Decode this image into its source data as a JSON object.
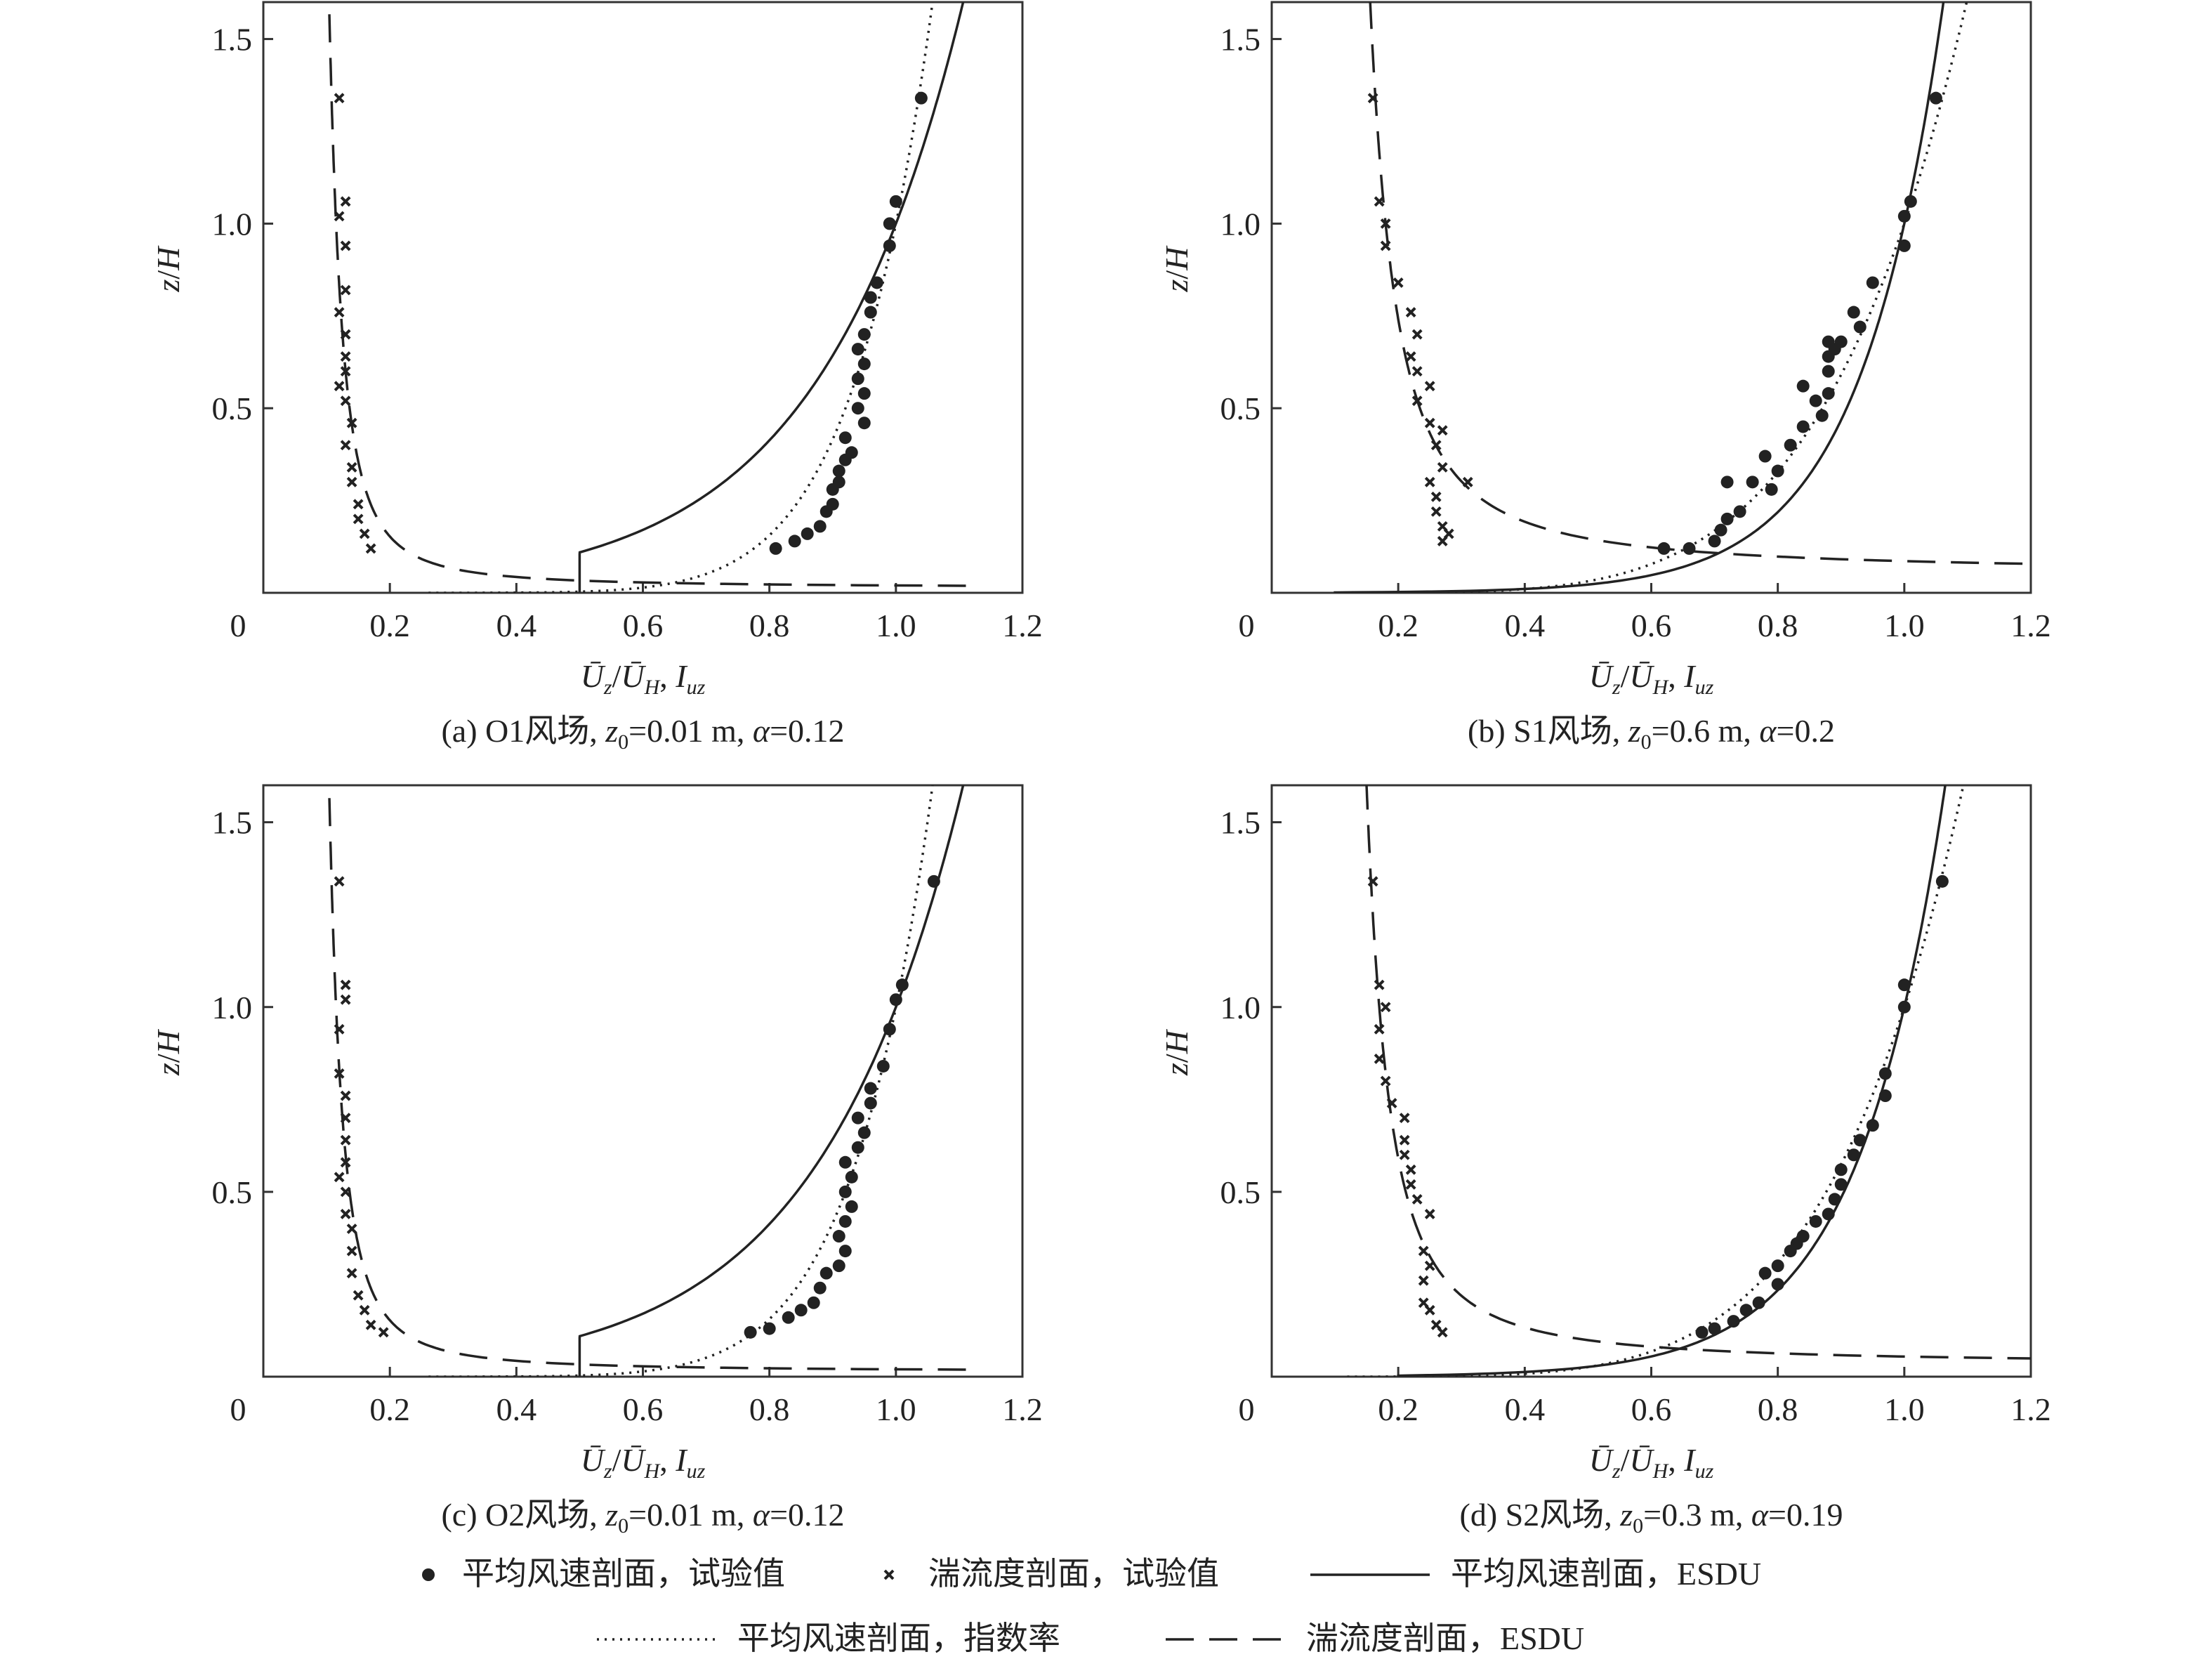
{
  "figure": {
    "legend": [
      {
        "symbol": "dot",
        "label": "平均风速剖面，试验值"
      },
      {
        "symbol": "cross",
        "label": "湍流度剖面，试验值"
      },
      {
        "symbol": "solid",
        "label": "平均风速剖面，ESDU"
      },
      {
        "symbol": "dotted",
        "label": "平均风速剖面，指数率"
      },
      {
        "symbol": "dashed",
        "label": "湍流度剖面，ESDU"
      }
    ],
    "colors": {
      "ink": "#222222",
      "frame": "#333333"
    }
  },
  "chart_data": [
    {
      "type": "scatter",
      "id": "a",
      "caption": {
        "prefix": "(a) O1风场, ",
        "z0_sym": "z",
        "z0_sub": "0",
        "z0_val": "=0.01 m, ",
        "alpha_sym": "α",
        "alpha_val": "=0.12"
      },
      "xlabel": "Ū_z/Ū_H, I_uz",
      "ylabel": "z/H",
      "xlim": [
        0,
        1.2
      ],
      "ylim": [
        0,
        1.6
      ],
      "xticks": [
        "0",
        "0.2",
        "0.4",
        "0.6",
        "0.8",
        "1.0",
        "1.2"
      ],
      "yticks": [
        "0.5",
        "1.0",
        "1.5"
      ],
      "series": [
        {
          "name": "平均风速剖面，试验值",
          "kind": "dot",
          "points": [
            [
              0.81,
              0.12
            ],
            [
              0.84,
              0.14
            ],
            [
              0.86,
              0.16
            ],
            [
              0.88,
              0.18
            ],
            [
              0.89,
              0.22
            ],
            [
              0.9,
              0.24
            ],
            [
              0.9,
              0.28
            ],
            [
              0.91,
              0.3
            ],
            [
              0.91,
              0.33
            ],
            [
              0.92,
              0.36
            ],
            [
              0.93,
              0.38
            ],
            [
              0.92,
              0.42
            ],
            [
              0.95,
              0.46
            ],
            [
              0.94,
              0.5
            ],
            [
              0.95,
              0.54
            ],
            [
              0.94,
              0.58
            ],
            [
              0.95,
              0.62
            ],
            [
              0.94,
              0.66
            ],
            [
              0.95,
              0.7
            ],
            [
              0.96,
              0.76
            ],
            [
              0.96,
              0.8
            ],
            [
              0.97,
              0.84
            ],
            [
              0.99,
              0.94
            ],
            [
              0.99,
              1.0
            ],
            [
              1.0,
              1.06
            ],
            [
              1.04,
              1.34
            ]
          ]
        },
        {
          "name": "湍流度剖面，试验值",
          "kind": "cross",
          "points": [
            [
              0.17,
              0.12
            ],
            [
              0.16,
              0.16
            ],
            [
              0.15,
              0.2
            ],
            [
              0.15,
              0.24
            ],
            [
              0.14,
              0.3
            ],
            [
              0.14,
              0.34
            ],
            [
              0.13,
              0.4
            ],
            [
              0.14,
              0.46
            ],
            [
              0.13,
              0.52
            ],
            [
              0.12,
              0.56
            ],
            [
              0.13,
              0.6
            ],
            [
              0.13,
              0.64
            ],
            [
              0.13,
              0.7
            ],
            [
              0.12,
              0.76
            ],
            [
              0.13,
              0.82
            ],
            [
              0.13,
              0.94
            ],
            [
              0.12,
              1.02
            ],
            [
              0.13,
              1.06
            ],
            [
              0.12,
              1.34
            ]
          ]
        },
        {
          "name": "平均风速剖面，ESDU",
          "kind": "solid",
          "fn": "log",
          "z0": 0.012,
          "xmin": 0.5
        },
        {
          "name": "平均风速剖面，指数率",
          "kind": "dotted",
          "fn": "pow",
          "alpha": 0.12
        },
        {
          "name": "湍流度剖面，ESDU",
          "kind": "dashed",
          "fn": "turb",
          "c": 0.115,
          "z0": 0.012
        }
      ]
    },
    {
      "type": "scatter",
      "id": "b",
      "caption": {
        "prefix": "(b) S1风场, ",
        "z0_sym": "z",
        "z0_sub": "0",
        "z0_val": "=0.6 m, ",
        "alpha_sym": "α",
        "alpha_val": "=0.2"
      },
      "xlabel": "Ū_z/Ū_H, I_uz",
      "ylabel": "z/H",
      "xlim": [
        0,
        1.2
      ],
      "ylim": [
        0,
        1.6
      ],
      "xticks": [
        "0",
        "0.2",
        "0.4",
        "0.6",
        "0.8",
        "1.0",
        "1.2"
      ],
      "yticks": [
        "0.5",
        "1.0",
        "1.5"
      ],
      "series": [
        {
          "name": "平均风速剖面，试验值",
          "kind": "dot",
          "points": [
            [
              0.62,
              0.12
            ],
            [
              0.66,
              0.12
            ],
            [
              0.7,
              0.14
            ],
            [
              0.71,
              0.17
            ],
            [
              0.72,
              0.2
            ],
            [
              0.74,
              0.22
            ],
            [
              0.72,
              0.3
            ],
            [
              0.76,
              0.3
            ],
            [
              0.79,
              0.28
            ],
            [
              0.8,
              0.33
            ],
            [
              0.78,
              0.37
            ],
            [
              0.82,
              0.4
            ],
            [
              0.84,
              0.45
            ],
            [
              0.87,
              0.48
            ],
            [
              0.86,
              0.52
            ],
            [
              0.88,
              0.54
            ],
            [
              0.84,
              0.56
            ],
            [
              0.88,
              0.6
            ],
            [
              0.88,
              0.64
            ],
            [
              0.89,
              0.66
            ],
            [
              0.88,
              0.68
            ],
            [
              0.9,
              0.68
            ],
            [
              0.93,
              0.72
            ],
            [
              0.92,
              0.76
            ],
            [
              0.95,
              0.84
            ],
            [
              1.0,
              0.94
            ],
            [
              1.0,
              1.02
            ],
            [
              1.01,
              1.06
            ],
            [
              1.05,
              1.34
            ]
          ]
        },
        {
          "name": "湍流度剖面，试验值",
          "kind": "cross",
          "points": [
            [
              0.27,
              0.14
            ],
            [
              0.28,
              0.16
            ],
            [
              0.27,
              0.18
            ],
            [
              0.26,
              0.22
            ],
            [
              0.26,
              0.26
            ],
            [
              0.25,
              0.3
            ],
            [
              0.31,
              0.3
            ],
            [
              0.27,
              0.34
            ],
            [
              0.26,
              0.4
            ],
            [
              0.27,
              0.44
            ],
            [
              0.25,
              0.46
            ],
            [
              0.23,
              0.52
            ],
            [
              0.25,
              0.56
            ],
            [
              0.23,
              0.6
            ],
            [
              0.22,
              0.64
            ],
            [
              0.23,
              0.7
            ],
            [
              0.22,
              0.76
            ],
            [
              0.2,
              0.84
            ],
            [
              0.18,
              0.94
            ],
            [
              0.18,
              1.0
            ],
            [
              0.17,
              1.06
            ],
            [
              0.16,
              1.34
            ]
          ]
        },
        {
          "name": "平均风速剖面，ESDU",
          "kind": "solid",
          "fn": "log",
          "z0": 0.0005,
          "xmin": 0.1
        },
        {
          "name": "平均风速剖面，指数率",
          "kind": "dotted",
          "fn": "pow",
          "alpha": 0.2
        },
        {
          "name": "湍流度剖面，ESDU",
          "kind": "dashed",
          "fn": "turb",
          "c": 0.18,
          "z0": 0.05
        }
      ]
    },
    {
      "type": "scatter",
      "id": "c",
      "caption": {
        "prefix": "(c) O2风场, ",
        "z0_sym": "z",
        "z0_sub": "0",
        "z0_val": "=0.01 m, ",
        "alpha_sym": "α",
        "alpha_val": "=0.12"
      },
      "xlabel": "Ū_z/Ū_H, I_uz",
      "ylabel": "z/H",
      "xlim": [
        0,
        1.2
      ],
      "ylim": [
        0,
        1.6
      ],
      "xticks": [
        "0",
        "0.2",
        "0.4",
        "0.6",
        "0.8",
        "1.0",
        "1.2"
      ],
      "yticks": [
        "0.5",
        "1.0",
        "1.5"
      ],
      "series": [
        {
          "name": "平均风速剖面，试验值",
          "kind": "dot",
          "points": [
            [
              0.77,
              0.12
            ],
            [
              0.8,
              0.13
            ],
            [
              0.83,
              0.16
            ],
            [
              0.85,
              0.18
            ],
            [
              0.87,
              0.2
            ],
            [
              0.88,
              0.24
            ],
            [
              0.89,
              0.28
            ],
            [
              0.91,
              0.3
            ],
            [
              0.92,
              0.34
            ],
            [
              0.91,
              0.38
            ],
            [
              0.92,
              0.42
            ],
            [
              0.93,
              0.46
            ],
            [
              0.92,
              0.5
            ],
            [
              0.93,
              0.54
            ],
            [
              0.92,
              0.58
            ],
            [
              0.94,
              0.62
            ],
            [
              0.95,
              0.66
            ],
            [
              0.94,
              0.7
            ],
            [
              0.96,
              0.74
            ],
            [
              0.96,
              0.78
            ],
            [
              0.98,
              0.84
            ],
            [
              0.99,
              0.94
            ],
            [
              1.0,
              1.02
            ],
            [
              1.01,
              1.06
            ],
            [
              1.06,
              1.34
            ]
          ]
        },
        {
          "name": "湍流度剖面，试验值",
          "kind": "cross",
          "points": [
            [
              0.19,
              0.12
            ],
            [
              0.17,
              0.14
            ],
            [
              0.16,
              0.18
            ],
            [
              0.15,
              0.22
            ],
            [
              0.14,
              0.28
            ],
            [
              0.14,
              0.34
            ],
            [
              0.14,
              0.4
            ],
            [
              0.13,
              0.44
            ],
            [
              0.13,
              0.5
            ],
            [
              0.12,
              0.54
            ],
            [
              0.13,
              0.58
            ],
            [
              0.13,
              0.64
            ],
            [
              0.13,
              0.7
            ],
            [
              0.13,
              0.76
            ],
            [
              0.12,
              0.82
            ],
            [
              0.12,
              0.94
            ],
            [
              0.13,
              1.02
            ],
            [
              0.13,
              1.06
            ],
            [
              0.12,
              1.34
            ]
          ]
        },
        {
          "name": "平均风速剖面，ESDU",
          "kind": "solid",
          "fn": "log",
          "z0": 0.012,
          "xmin": 0.5
        },
        {
          "name": "平均风速剖面，指数率",
          "kind": "dotted",
          "fn": "pow",
          "alpha": 0.12
        },
        {
          "name": "湍流度剖面，ESDU",
          "kind": "dashed",
          "fn": "turb",
          "c": 0.115,
          "z0": 0.012
        }
      ]
    },
    {
      "type": "scatter",
      "id": "d",
      "caption": {
        "prefix": "(d) S2风场, ",
        "z0_sym": "z",
        "z0_sub": "0",
        "z0_val": "=0.3 m, ",
        "alpha_sym": "α",
        "alpha_val": "=0.19"
      },
      "xlabel": "Ū_z/Ū_H, I_uz",
      "ylabel": "z/H",
      "xlim": [
        0,
        1.2
      ],
      "ylim": [
        0,
        1.6
      ],
      "xticks": [
        "0",
        "0.2",
        "0.4",
        "0.6",
        "0.8",
        "1.0",
        "1.2"
      ],
      "yticks": [
        "0.5",
        "1.0",
        "1.5"
      ],
      "series": [
        {
          "name": "平均风速剖面，试验值",
          "kind": "dot",
          "points": [
            [
              0.68,
              0.12
            ],
            [
              0.7,
              0.13
            ],
            [
              0.73,
              0.15
            ],
            [
              0.75,
              0.18
            ],
            [
              0.77,
              0.2
            ],
            [
              0.8,
              0.25
            ],
            [
              0.78,
              0.28
            ],
            [
              0.8,
              0.3
            ],
            [
              0.82,
              0.34
            ],
            [
              0.83,
              0.36
            ],
            [
              0.84,
              0.38
            ],
            [
              0.86,
              0.42
            ],
            [
              0.88,
              0.44
            ],
            [
              0.89,
              0.48
            ],
            [
              0.9,
              0.52
            ],
            [
              0.9,
              0.56
            ],
            [
              0.92,
              0.6
            ],
            [
              0.93,
              0.64
            ],
            [
              0.95,
              0.68
            ],
            [
              0.97,
              0.76
            ],
            [
              0.97,
              0.82
            ],
            [
              1.0,
              1.0
            ],
            [
              1.0,
              1.06
            ],
            [
              1.06,
              1.34
            ]
          ]
        },
        {
          "name": "湍流度剖面，试验值",
          "kind": "cross",
          "points": [
            [
              0.27,
              0.12
            ],
            [
              0.26,
              0.14
            ],
            [
              0.25,
              0.18
            ],
            [
              0.24,
              0.2
            ],
            [
              0.24,
              0.26
            ],
            [
              0.25,
              0.3
            ],
            [
              0.24,
              0.34
            ],
            [
              0.25,
              0.44
            ],
            [
              0.23,
              0.48
            ],
            [
              0.22,
              0.52
            ],
            [
              0.22,
              0.56
            ],
            [
              0.21,
              0.6
            ],
            [
              0.21,
              0.64
            ],
            [
              0.21,
              0.7
            ],
            [
              0.19,
              0.74
            ],
            [
              0.18,
              0.8
            ],
            [
              0.17,
              0.86
            ],
            [
              0.17,
              0.94
            ],
            [
              0.18,
              1.0
            ],
            [
              0.17,
              1.06
            ],
            [
              0.16,
              1.34
            ]
          ]
        },
        {
          "name": "平均风速剖面，ESDU",
          "kind": "solid",
          "fn": "log",
          "z0": 0.0007,
          "xmin": 0.2
        },
        {
          "name": "平均风速剖面，指数率",
          "kind": "dotted",
          "fn": "pow",
          "alpha": 0.19
        },
        {
          "name": "湍流度剖面，ESDU",
          "kind": "dashed",
          "fn": "turb",
          "c": 0.17,
          "z0": 0.03
        }
      ]
    }
  ]
}
